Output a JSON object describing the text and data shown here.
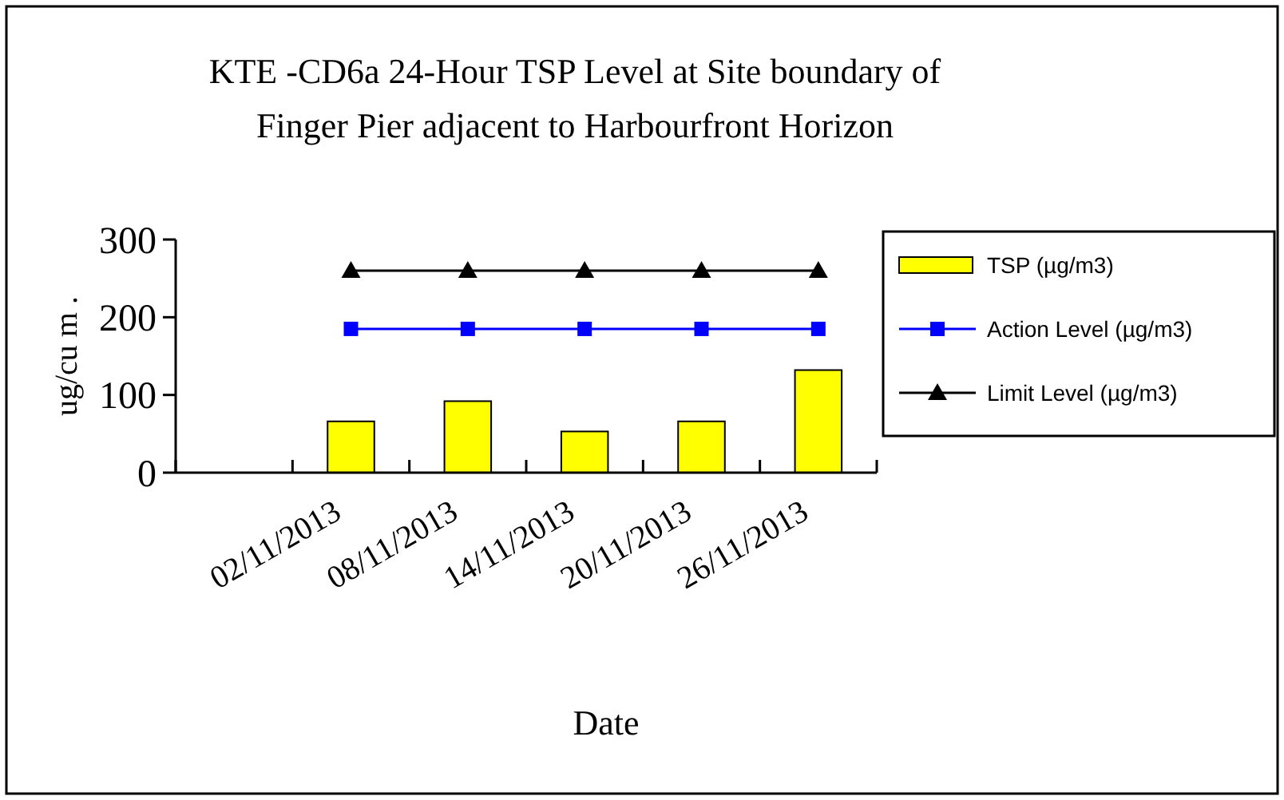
{
  "chart_data": {
    "type": "bar",
    "title": "KTE -CD6a 24-Hour TSP Level at Site boundary of\nFinger Pier adjacent to Harbourfront Horizon",
    "xlabel": "Date",
    "ylabel": "ug/cu m .",
    "categories": [
      null,
      "02/11/2013",
      "08/11/2013",
      "14/11/2013",
      "20/11/2013",
      "26/11/2013"
    ],
    "series": [
      {
        "name": "TSP (µg/m3)",
        "color": "#ffff00",
        "values": [
          null,
          66,
          92,
          53,
          66,
          132
        ]
      },
      {
        "name": "Action Level (µg/m3)",
        "type": "line",
        "color": "#0000ff",
        "marker": "square",
        "values": [
          null,
          185,
          185,
          185,
          185,
          185
        ]
      },
      {
        "name": "Limit Level (µg/m3)",
        "type": "line",
        "color": "#000000",
        "marker": "triangle",
        "values": [
          null,
          260,
          260,
          260,
          260,
          260
        ]
      }
    ],
    "ylim": [
      0,
      300
    ],
    "yticks": [
      0,
      100,
      200,
      300
    ],
    "grid": false,
    "legend": "right"
  }
}
